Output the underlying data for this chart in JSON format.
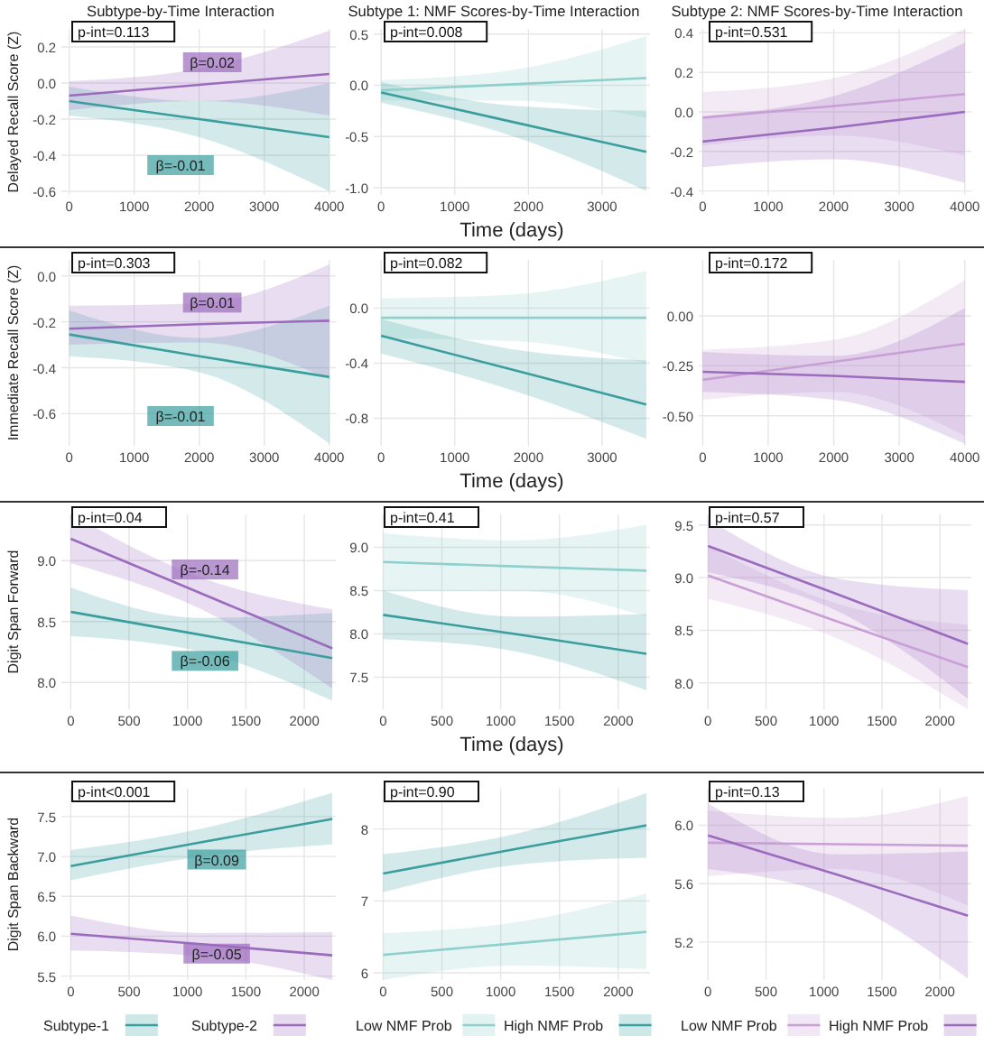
{
  "chart_data": [
    {
      "type": "line",
      "title": "Subtype-by-Time Interaction",
      "ylabel": "Delayed Recall Score (Z)",
      "x": [
        0,
        2000,
        4000
      ],
      "xlim": [
        -120,
        4100
      ],
      "ylim": [
        -0.62,
        0.3
      ],
      "xticks": [
        0,
        1000,
        2000,
        3000,
        4000
      ],
      "yticks": [
        -0.6,
        -0.4,
        -0.2,
        {
          "value": 0,
          "label": "0.0"
        },
        0.2
      ],
      "grid": true,
      "series": [
        {
          "color": "#3a9e9e",
          "values": [
            -0.1,
            -0.2,
            -0.3
          ],
          "lower": [
            -0.18,
            -0.3,
            -0.6
          ],
          "upper": [
            -0.02,
            -0.1,
            0.0
          ]
        },
        {
          "color": "#9b6bbd",
          "values": [
            -0.07,
            -0.01,
            0.05
          ],
          "lower": [
            -0.15,
            -0.1,
            -0.18
          ],
          "upper": [
            0.01,
            0.08,
            0.29
          ]
        }
      ],
      "annotations": [
        "p-int=0.113",
        {
          "text": "β=0.02",
          "x": 2200,
          "y": 0.11
        },
        "β=-0.01"
      ]
    },
    {
      "type": "line",
      "title": "Subtype 1: NMF Scores-by-Time Interaction",
      "xlabel": "Time (days)",
      "x": [
        0,
        1800,
        3600
      ],
      "xlim": [
        -100,
        3650
      ],
      "ylim": [
        -1.07,
        0.55
      ],
      "xticks": [
        0,
        1000,
        2000,
        3000
      ],
      "yticks": [
        {
          "value": -1,
          "label": "-1.0"
        },
        -0.5,
        {
          "value": 0,
          "label": "0.0"
        },
        0.5
      ],
      "grid": true,
      "series": [
        {
          "color": "#8fd0cc",
          "values": [
            -0.05,
            0.01,
            0.07
          ],
          "lower": [
            -0.15,
            -0.15,
            -0.32
          ],
          "upper": [
            0.05,
            0.15,
            0.48
          ]
        },
        {
          "color": "#3a9e9e",
          "values": [
            -0.07,
            -0.36,
            -0.65
          ],
          "lower": [
            -0.17,
            -0.5,
            -1.03
          ],
          "upper": [
            0.03,
            -0.2,
            -0.25
          ]
        }
      ],
      "annotations": [
        "p-int=0.008"
      ]
    },
    {
      "type": "line",
      "title": "Subtype 2: NMF Scores-by-Time Interaction",
      "x": [
        0,
        2000,
        4000
      ],
      "xlim": [
        -60,
        4100
      ],
      "ylim": [
        -0.42,
        0.42
      ],
      "xticks": [
        0,
        1000,
        2000,
        3000,
        4000
      ],
      "yticks": [
        -0.4,
        -0.2,
        {
          "value": 0,
          "label": "0.0"
        },
        0.2,
        0.4
      ],
      "grid": true,
      "series": [
        {
          "color": "#c9a0d6",
          "values": [
            -0.03,
            0.03,
            0.09
          ],
          "lower": [
            -0.17,
            -0.12,
            -0.22
          ],
          "upper": [
            0.1,
            0.17,
            0.42
          ]
        },
        {
          "color": "#9b6bbd",
          "values": [
            -0.15,
            -0.08,
            0.0
          ],
          "lower": [
            -0.28,
            -0.24,
            -0.36
          ],
          "upper": [
            -0.02,
            0.08,
            0.35
          ]
        }
      ],
      "annotations": [
        "p-int=0.531"
      ]
    },
    {
      "type": "line",
      "ylabel": "Immediate Recall Score (Z)",
      "x": [
        0,
        2000,
        4000
      ],
      "xlim": [
        -120,
        4100
      ],
      "ylim": [
        -0.74,
        0.07
      ],
      "xticks": [
        0,
        1000,
        2000,
        3000,
        4000
      ],
      "yticks": [
        -0.6,
        -0.4,
        -0.2,
        {
          "value": 0,
          "label": "0.0"
        }
      ],
      "grid": true,
      "series": [
        {
          "color": "#3a9e9e",
          "values": [
            -0.255,
            -0.35,
            -0.44
          ],
          "lower": [
            -0.35,
            -0.42,
            -0.73
          ],
          "upper": [
            -0.15,
            -0.27,
            -0.13
          ]
        },
        {
          "color": "#9b6bbd",
          "values": [
            -0.23,
            -0.21,
            -0.195
          ],
          "lower": [
            -0.3,
            -0.29,
            -0.45
          ],
          "upper": [
            -0.13,
            -0.12,
            0.05
          ]
        }
      ],
      "annotations": [
        "p-int=0.303",
        {
          "text": "β=0.01",
          "x": 2200,
          "y": -0.12
        },
        "β=-0.01"
      ]
    },
    {
      "type": "line",
      "xlabel": "Time (days)",
      "x": [
        0,
        1800,
        3600
      ],
      "xlim": [
        -100,
        3650
      ],
      "ylim": [
        -1.0,
        0.35
      ],
      "xticks": [
        0,
        1000,
        2000,
        3000
      ],
      "yticks": [
        -0.8,
        -0.4,
        {
          "value": 0,
          "label": "0.0"
        }
      ],
      "grid": true,
      "series": [
        {
          "color": "#8fd0cc",
          "values": [
            -0.07,
            -0.07,
            -0.07
          ],
          "lower": [
            -0.22,
            -0.24,
            -0.4
          ],
          "upper": [
            0.07,
            0.1,
            0.27
          ]
        },
        {
          "color": "#3a9e9e",
          "values": [
            -0.2,
            -0.45,
            -0.7
          ],
          "lower": [
            -0.33,
            -0.6,
            -0.95
          ],
          "upper": [
            -0.08,
            -0.3,
            -0.38
          ]
        }
      ],
      "annotations": [
        "p-int=0.082"
      ]
    },
    {
      "type": "line",
      "x": [
        0,
        2000,
        4000
      ],
      "xlim": [
        -60,
        4100
      ],
      "ylim": [
        -0.65,
        0.28
      ],
      "xticks": [
        0,
        1000,
        2000,
        3000,
        4000
      ],
      "yticks": [
        {
          "value": -0.5,
          "label": "-0.50"
        },
        {
          "value": -0.25,
          "label": "-0.25"
        },
        {
          "value": 0,
          "label": "0.00"
        }
      ],
      "grid": true,
      "series": [
        {
          "color": "#c9a0d6",
          "values": [
            -0.32,
            -0.23,
            -0.14
          ],
          "lower": [
            -0.42,
            -0.38,
            -0.6
          ],
          "upper": [
            -0.17,
            -0.12,
            0.18
          ]
        },
        {
          "color": "#9b6bbd",
          "values": [
            -0.28,
            -0.3,
            -0.33
          ],
          "lower": [
            -0.38,
            -0.42,
            -0.64
          ],
          "upper": [
            -0.18,
            -0.2,
            0.04
          ]
        }
      ],
      "annotations": [
        "p-int=0.172"
      ]
    },
    {
      "type": "line",
      "ylabel": "Digit Span Forward",
      "x": [
        0,
        1120,
        2240
      ],
      "xlim": [
        -80,
        2270
      ],
      "ylim": [
        7.78,
        9.38
      ],
      "xticks": [
        0,
        500,
        1000,
        1500,
        2000
      ],
      "yticks": [
        {
          "value": 8,
          "label": "8.0"
        },
        8.5,
        {
          "value": 9,
          "label": "9.0"
        }
      ],
      "grid": true,
      "series": [
        {
          "color": "#3a9e9e",
          "values": [
            8.58,
            8.39,
            8.2
          ],
          "lower": [
            8.38,
            8.25,
            7.85
          ],
          "upper": [
            8.78,
            8.53,
            8.57
          ]
        },
        {
          "color": "#9b6bbd",
          "values": [
            9.18,
            8.73,
            8.28
          ],
          "lower": [
            8.98,
            8.6,
            7.95
          ],
          "upper": [
            9.38,
            8.86,
            8.6
          ]
        }
      ],
      "annotations": [
        "p-int=0.04",
        {
          "text": "β=-0.14",
          "x": 1150,
          "y": 8.92
        },
        {
          "text": "β=-0.06",
          "x": 1150,
          "y": 8.17
        }
      ]
    },
    {
      "type": "line",
      "xlabel": "Time (days)",
      "x": [
        0,
        1120,
        2240
      ],
      "xlim": [
        -80,
        2270
      ],
      "ylim": [
        7.13,
        9.38
      ],
      "xticks": [
        0,
        500,
        1000,
        1500,
        2000
      ],
      "yticks": [
        7.5,
        {
          "value": 8,
          "label": "8.0"
        },
        8.5,
        {
          "value": 9,
          "label": "9.0"
        }
      ],
      "grid": true,
      "series": [
        {
          "color": "#8fd0cc",
          "values": [
            8.83,
            8.78,
            8.73
          ],
          "lower": [
            8.49,
            8.5,
            8.2
          ],
          "upper": [
            9.16,
            9.08,
            9.26
          ]
        },
        {
          "color": "#3a9e9e",
          "values": [
            8.22,
            8.0,
            7.77
          ],
          "lower": [
            7.94,
            7.8,
            7.35
          ],
          "upper": [
            8.5,
            8.2,
            8.23
          ]
        }
      ],
      "annotations": [
        "p-int=0.41"
      ]
    },
    {
      "type": "line",
      "x": [
        0,
        1120,
        2240
      ],
      "xlim": [
        -80,
        2270
      ],
      "ylim": [
        7.75,
        9.6
      ],
      "xticks": [
        0,
        500,
        1000,
        1500,
        2000
      ],
      "yticks": [
        {
          "value": 8,
          "label": "8.0"
        },
        8.5,
        {
          "value": 9,
          "label": "9.0"
        },
        9.5
      ],
      "grid": true,
      "series": [
        {
          "color": "#c9a0d6",
          "values": [
            9.02,
            8.58,
            8.15
          ],
          "lower": [
            8.8,
            8.42,
            7.75
          ],
          "upper": [
            9.3,
            8.75,
            8.55
          ]
        },
        {
          "color": "#9b6bbd",
          "values": [
            9.3,
            8.84,
            8.37
          ],
          "lower": [
            9.05,
            8.68,
            7.85
          ],
          "upper": [
            9.55,
            8.99,
            8.88
          ]
        }
      ],
      "annotations": [
        "p-int=0.57"
      ]
    },
    {
      "type": "line",
      "ylabel": "Digit Span Backward",
      "x": [
        0,
        1120,
        2240
      ],
      "xlim": [
        -80,
        2270
      ],
      "ylim": [
        5.45,
        7.85
      ],
      "xticks": [
        0,
        500,
        1000,
        1500,
        2000
      ],
      "yticks": [
        5.5,
        {
          "value": 6,
          "label": "6.0"
        },
        6.5,
        {
          "value": 7,
          "label": "7.0"
        },
        7.5
      ],
      "grid": true,
      "legend": "bottom",
      "series": [
        {
          "name": "Subtype-1",
          "color": "#3a9e9e",
          "values": [
            6.88,
            7.18,
            7.47
          ],
          "lower": [
            6.7,
            7.0,
            7.15
          ],
          "upper": [
            7.08,
            7.35,
            7.8
          ]
        },
        {
          "name": "Subtype-2",
          "color": "#9b6bbd",
          "values": [
            6.03,
            5.9,
            5.76
          ],
          "lower": [
            5.82,
            5.75,
            5.45
          ],
          "upper": [
            6.26,
            6.04,
            6.05
          ]
        }
      ],
      "annotations": [
        "p-int<0.001",
        {
          "text": "β=0.09",
          "x": 1250,
          "y": 6.95
        },
        {
          "text": "β=-0.05",
          "x": 1250,
          "y": 5.77
        }
      ]
    },
    {
      "type": "line",
      "x": [
        0,
        1120,
        2240
      ],
      "xlim": [
        -80,
        2270
      ],
      "ylim": [
        5.9,
        8.56
      ],
      "xticks": [
        0,
        500,
        1000,
        1500,
        2000
      ],
      "yticks": [
        6,
        7,
        8
      ],
      "grid": true,
      "legend": "bottom",
      "series": [
        {
          "name": "Low NMF Prob",
          "color": "#8fd0cc",
          "values": [
            6.25,
            6.41,
            6.57
          ],
          "lower": [
            5.9,
            6.1,
            6.05
          ],
          "upper": [
            6.55,
            6.7,
            7.1
          ]
        },
        {
          "name": "High NMF Prob",
          "color": "#3a9e9e",
          "values": [
            7.38,
            7.72,
            8.05
          ],
          "lower": [
            7.12,
            7.5,
            7.6
          ],
          "upper": [
            7.65,
            7.93,
            8.5
          ]
        }
      ],
      "annotations": [
        "p-int=0.90"
      ]
    },
    {
      "type": "line",
      "x": [
        0,
        1120,
        2240
      ],
      "xlim": [
        -80,
        2270
      ],
      "ylim": [
        4.94,
        6.25
      ],
      "xticks": [
        0,
        500,
        1000,
        1500,
        2000
      ],
      "yticks": [
        5.2,
        5.6,
        {
          "value": 6,
          "label": "6.0"
        }
      ],
      "grid": true,
      "legend": "bottom",
      "series": [
        {
          "name": "Low NMF Prob",
          "color": "#c9a0d6",
          "values": [
            5.88,
            5.87,
            5.86
          ],
          "lower": [
            5.65,
            5.7,
            5.45
          ],
          "upper": [
            6.1,
            6.05,
            6.2
          ]
        },
        {
          "name": "High NMF Prob",
          "color": "#9b6bbd",
          "values": [
            5.93,
            5.66,
            5.38
          ],
          "lower": [
            5.7,
            5.5,
            4.95
          ],
          "upper": [
            6.15,
            5.8,
            5.82
          ]
        }
      ],
      "annotations": [
        "p-int=0.13"
      ]
    }
  ]
}
